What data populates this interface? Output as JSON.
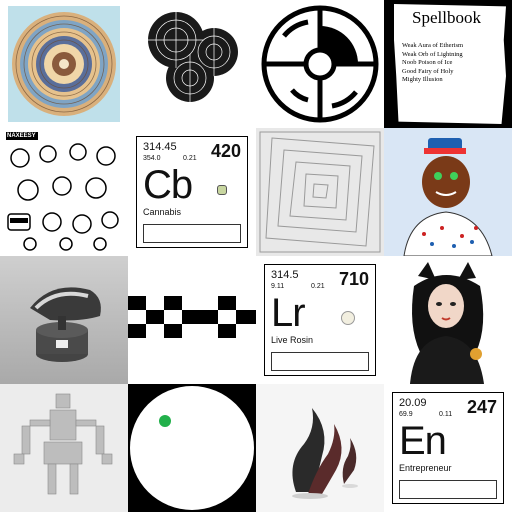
{
  "spellbook": {
    "title": "Spellbook",
    "items": [
      "Weak Aura of Etherism",
      "Weak Orb of Lightning",
      "Noob Poison of Ice",
      "Good Fairy of Holy",
      "Mighty Illusion"
    ]
  },
  "stickers_label": "NAXEESY",
  "cards": [
    {
      "mass": "314.45",
      "sub1": "354.0",
      "sub2": "0.21",
      "number": "420",
      "symbol": "Cb",
      "name": "Cannabis"
    },
    {
      "mass": "314.5",
      "sub1": "9.11",
      "sub2": "0.21",
      "number": "710",
      "symbol": "Lr",
      "name": "Live Rosin"
    },
    {
      "mass": "20.09",
      "sub1": "69.9",
      "sub2": "0.11",
      "number": "247",
      "symbol": "En",
      "name": "Entrepreneur"
    }
  ],
  "colors": {
    "dot_green": "#22b04b",
    "spellbook_bg": "#000000"
  }
}
